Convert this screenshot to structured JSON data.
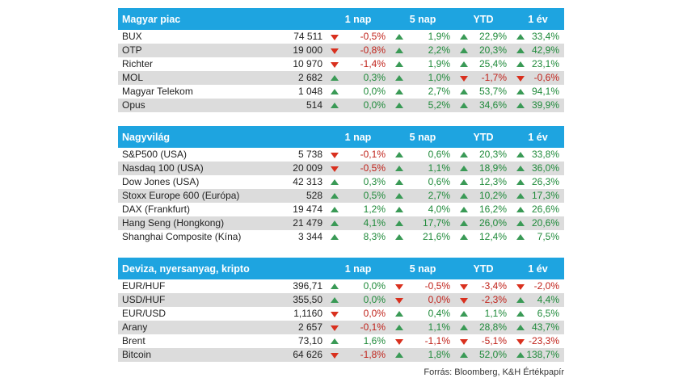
{
  "headers": [
    "1 nap",
    "5 nap",
    "YTD",
    "1 év"
  ],
  "colors": {
    "header_bg": "#1ea4e0",
    "up": "#3a9a56",
    "down": "#d9301e"
  },
  "sections": [
    {
      "title": "Magyar piac",
      "rows": [
        {
          "name": "BUX",
          "value": "74 511",
          "changes": [
            {
              "text": "-0,5%",
              "dir": "down"
            },
            {
              "text": "1,9%",
              "dir": "up"
            },
            {
              "text": "22,9%",
              "dir": "up"
            },
            {
              "text": "33,4%",
              "dir": "up"
            }
          ]
        },
        {
          "name": "OTP",
          "value": "19 000",
          "changes": [
            {
              "text": "-0,8%",
              "dir": "down"
            },
            {
              "text": "2,2%",
              "dir": "up"
            },
            {
              "text": "20,3%",
              "dir": "up"
            },
            {
              "text": "42,9%",
              "dir": "up"
            }
          ]
        },
        {
          "name": "Richter",
          "value": "10 970",
          "changes": [
            {
              "text": "-1,4%",
              "dir": "down"
            },
            {
              "text": "1,9%",
              "dir": "up"
            },
            {
              "text": "25,4%",
              "dir": "up"
            },
            {
              "text": "23,1%",
              "dir": "up"
            }
          ]
        },
        {
          "name": "MOL",
          "value": "2 682",
          "changes": [
            {
              "text": "0,3%",
              "dir": "up"
            },
            {
              "text": "1,0%",
              "dir": "up"
            },
            {
              "text": "-1,7%",
              "dir": "down"
            },
            {
              "text": "-0,6%",
              "dir": "down"
            }
          ]
        },
        {
          "name": "Magyar Telekom",
          "value": "1 048",
          "changes": [
            {
              "text": "0,0%",
              "dir": "flat"
            },
            {
              "text": "2,7%",
              "dir": "up"
            },
            {
              "text": "53,7%",
              "dir": "up"
            },
            {
              "text": "94,1%",
              "dir": "up"
            }
          ]
        },
        {
          "name": "Opus",
          "value": "514",
          "changes": [
            {
              "text": "0,0%",
              "dir": "flat"
            },
            {
              "text": "5,2%",
              "dir": "up"
            },
            {
              "text": "34,6%",
              "dir": "up"
            },
            {
              "text": "39,9%",
              "dir": "up"
            }
          ]
        }
      ]
    },
    {
      "title": "Nagyvilág",
      "rows": [
        {
          "name": "S&P500 (USA)",
          "value": "5 738",
          "changes": [
            {
              "text": "-0,1%",
              "dir": "down"
            },
            {
              "text": "0,6%",
              "dir": "up"
            },
            {
              "text": "20,3%",
              "dir": "up"
            },
            {
              "text": "33,8%",
              "dir": "up"
            }
          ]
        },
        {
          "name": "Nasdaq 100 (USA)",
          "value": "20 009",
          "changes": [
            {
              "text": "-0,5%",
              "dir": "down"
            },
            {
              "text": "1,1%",
              "dir": "up"
            },
            {
              "text": "18,9%",
              "dir": "up"
            },
            {
              "text": "36,0%",
              "dir": "up"
            }
          ]
        },
        {
          "name": "Dow Jones (USA)",
          "value": "42 313",
          "changes": [
            {
              "text": "0,3%",
              "dir": "up"
            },
            {
              "text": "0,6%",
              "dir": "up"
            },
            {
              "text": "12,3%",
              "dir": "up"
            },
            {
              "text": "26,3%",
              "dir": "up"
            }
          ]
        },
        {
          "name": "Stoxx Europe 600 (Európa)",
          "value": "528",
          "changes": [
            {
              "text": "0,5%",
              "dir": "up"
            },
            {
              "text": "2,7%",
              "dir": "up"
            },
            {
              "text": "10,2%",
              "dir": "up"
            },
            {
              "text": "17,3%",
              "dir": "up"
            }
          ]
        },
        {
          "name": "DAX (Frankfurt)",
          "value": "19 474",
          "changes": [
            {
              "text": "1,2%",
              "dir": "up"
            },
            {
              "text": "4,0%",
              "dir": "up"
            },
            {
              "text": "16,2%",
              "dir": "up"
            },
            {
              "text": "26,6%",
              "dir": "up"
            }
          ]
        },
        {
          "name": "Hang Seng (Hongkong)",
          "value": "21 479",
          "changes": [
            {
              "text": "4,1%",
              "dir": "up"
            },
            {
              "text": "17,7%",
              "dir": "up"
            },
            {
              "text": "26,0%",
              "dir": "up"
            },
            {
              "text": "20,6%",
              "dir": "up"
            }
          ]
        },
        {
          "name": "Shanghai Composite (Kína)",
          "value": "3 344",
          "changes": [
            {
              "text": "8,3%",
              "dir": "up"
            },
            {
              "text": "21,6%",
              "dir": "up"
            },
            {
              "text": "12,4%",
              "dir": "up"
            },
            {
              "text": "7,5%",
              "dir": "up"
            }
          ]
        }
      ]
    },
    {
      "title": "Deviza, nyersanyag, kripto",
      "rows": [
        {
          "name": "EUR/HUF",
          "value": "396,71",
          "changes": [
            {
              "text": "0,0%",
              "dir": "up"
            },
            {
              "text": "-0,5%",
              "dir": "down"
            },
            {
              "text": "-3,4%",
              "dir": "down"
            },
            {
              "text": "-2,0%",
              "dir": "down"
            }
          ]
        },
        {
          "name": "USD/HUF",
          "value": "355,50",
          "changes": [
            {
              "text": "0,0%",
              "dir": "up"
            },
            {
              "text": "0,0%",
              "dir": "down"
            },
            {
              "text": "-2,3%",
              "dir": "down"
            },
            {
              "text": "4,4%",
              "dir": "up"
            }
          ]
        },
        {
          "name": "EUR/USD",
          "value": "1,1160",
          "changes": [
            {
              "text": "0,0%",
              "dir": "down"
            },
            {
              "text": "0,4%",
              "dir": "up"
            },
            {
              "text": "1,1%",
              "dir": "up"
            },
            {
              "text": "6,5%",
              "dir": "up"
            }
          ]
        },
        {
          "name": "Arany",
          "value": "2 657",
          "changes": [
            {
              "text": "-0,1%",
              "dir": "down"
            },
            {
              "text": "1,1%",
              "dir": "up"
            },
            {
              "text": "28,8%",
              "dir": "up"
            },
            {
              "text": "43,7%",
              "dir": "up"
            }
          ]
        },
        {
          "name": "Brent",
          "value": "73,10",
          "changes": [
            {
              "text": "1,6%",
              "dir": "up"
            },
            {
              "text": "-1,1%",
              "dir": "down"
            },
            {
              "text": "-5,1%",
              "dir": "down"
            },
            {
              "text": "-23,3%",
              "dir": "down"
            }
          ]
        },
        {
          "name": "Bitcoin",
          "value": "64 626",
          "changes": [
            {
              "text": "-1,8%",
              "dir": "down"
            },
            {
              "text": "1,8%",
              "dir": "up"
            },
            {
              "text": "52,0%",
              "dir": "up"
            },
            {
              "text": "138,7%",
              "dir": "up"
            }
          ]
        }
      ]
    }
  ],
  "source": "Forrás: Bloomberg, K&H Értékpapír"
}
